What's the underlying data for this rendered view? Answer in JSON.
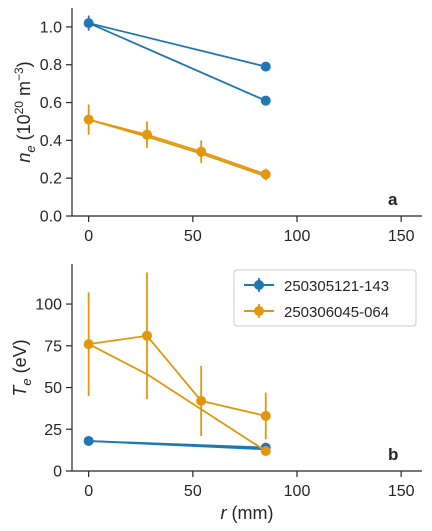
{
  "chart_data": [
    {
      "type": "line",
      "panel_label": "a",
      "xlabel": "",
      "ylabel_main": "n",
      "ylabel_sub": "e",
      "ylabel_unit_pre": " (10",
      "ylabel_unit_sup": "20",
      "ylabel_unit_mid": " m",
      "ylabel_unit_sup2": "−3",
      "ylabel_unit_post": ")",
      "xlim": [
        -8,
        160
      ],
      "ylim": [
        0,
        1.1
      ],
      "xticks": [
        0,
        50,
        100,
        150
      ],
      "yticks": [
        0.0,
        0.2,
        0.4,
        0.6,
        0.8,
        1.0
      ],
      "ytick_labels": [
        "0.0",
        "0.2",
        "0.4",
        "0.6",
        "0.8",
        "1.0"
      ],
      "series": [
        {
          "legend_index": 0,
          "color": "#1f77b4",
          "lines": [
            {
              "x": [
                0,
                85
              ],
              "y": [
                1.02,
                0.79
              ]
            },
            {
              "x": [
                0,
                85
              ],
              "y": [
                1.02,
                0.61
              ]
            }
          ],
          "points": [
            {
              "x": 0,
              "y": 1.02,
              "err": 0.04
            },
            {
              "x": 85,
              "y": 0.79,
              "err": 0.0
            },
            {
              "x": 85,
              "y": 0.61,
              "err": 0.0
            }
          ]
        },
        {
          "legend_index": 1,
          "color": "#e3970c",
          "lines": [
            {
              "x": [
                0,
                28,
                54,
                85
              ],
              "y": [
                0.51,
                0.43,
                0.34,
                0.22
              ]
            },
            {
              "x": [
                0,
                28,
                54,
                85
              ],
              "y": [
                0.51,
                0.42,
                0.33,
                0.21
              ]
            }
          ],
          "points": [
            {
              "x": 0,
              "y": 0.51,
              "err": 0.08
            },
            {
              "x": 28,
              "y": 0.43,
              "err": 0.07
            },
            {
              "x": 54,
              "y": 0.34,
              "err": 0.06
            },
            {
              "x": 85,
              "y": 0.22,
              "err": 0.03
            }
          ]
        }
      ]
    },
    {
      "type": "line",
      "panel_label": "b",
      "xlabel_main": "r",
      "xlabel_unit": " (mm)",
      "ylabel_main": "T",
      "ylabel_sub": "e",
      "ylabel_unit_post": " (eV)",
      "xlim": [
        -8,
        160
      ],
      "ylim": [
        0,
        124
      ],
      "xticks": [
        0,
        50,
        100,
        150
      ],
      "yticks": [
        0,
        25,
        50,
        75,
        100
      ],
      "ytick_labels": [
        "0",
        "25",
        "50",
        "75",
        "100"
      ],
      "series": [
        {
          "legend_index": 0,
          "color": "#1f77b4",
          "lines": [
            {
              "x": [
                0,
                85
              ],
              "y": [
                18,
                14
              ]
            },
            {
              "x": [
                0,
                85
              ],
              "y": [
                18,
                13
              ]
            }
          ],
          "points": [
            {
              "x": 0,
              "y": 18,
              "err": 0
            },
            {
              "x": 85,
              "y": 14,
              "err": 0
            }
          ]
        },
        {
          "legend_index": 1,
          "color": "#e3970c",
          "lines": [
            {
              "x": [
                0,
                28,
                54,
                85
              ],
              "y": [
                76,
                81,
                42,
                33
              ]
            },
            {
              "x": [
                0,
                28,
                85
              ],
              "y": [
                76,
                58,
                12
              ]
            }
          ],
          "points": [
            {
              "x": 0,
              "y": 76,
              "err": 31
            },
            {
              "x": 28,
              "y": 81,
              "err": 38
            },
            {
              "x": 54,
              "y": 42,
              "err": 21
            },
            {
              "x": 85,
              "y": 33,
              "err": 14
            },
            {
              "x": 85,
              "y": 12,
              "err": 0
            }
          ]
        }
      ]
    }
  ],
  "legend": {
    "placement": "top-right of panel b",
    "entries": [
      {
        "label": "250305121-143",
        "color": "#1f77b4"
      },
      {
        "label": "250306045-064",
        "color": "#e3970c"
      }
    ]
  }
}
